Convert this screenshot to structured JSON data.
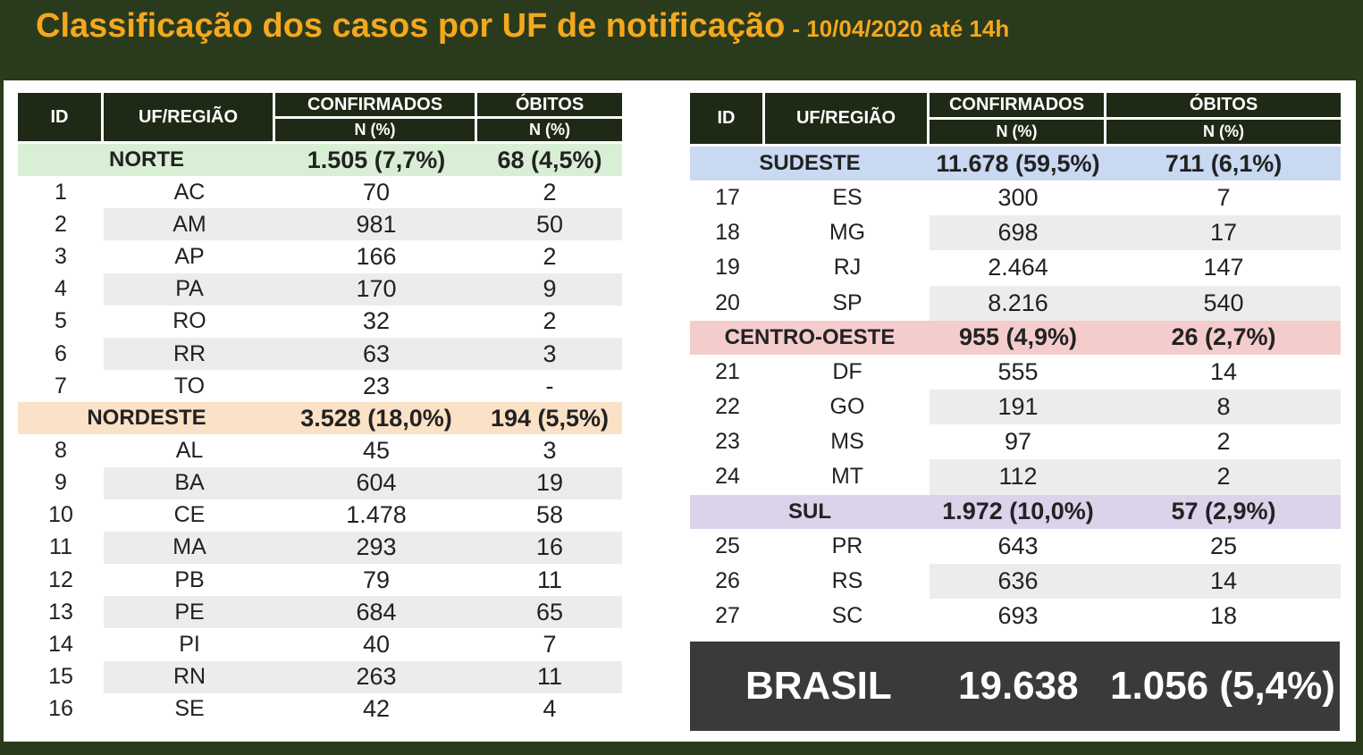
{
  "title": "Classificação dos casos por UF de notificação",
  "subtitle": "- 10/04/2020 até 14h",
  "headers": {
    "id": "ID",
    "uf": "UF/REGIÃO",
    "confirmados": "CONFIRMADOS",
    "obitos": "ÓBITOS",
    "n_pct": "N (%)"
  },
  "colors": {
    "norte": "#d9efd5",
    "nordeste": "#fbe1c5",
    "sudeste": "#c9d9f2",
    "centro_oeste": "#f4cccc",
    "sul": "#dcd2ea",
    "header_bg": "#1f2a16",
    "title": "#f4a81d"
  },
  "left_groups": [
    {
      "region": "NORTE",
      "confirmados": "1.505 (7,7%)",
      "obitos": "68 (4,5%)",
      "color": "#d9efd5",
      "rows": [
        {
          "id": "1",
          "uf": "AC",
          "confirmados": "70",
          "obitos": "2"
        },
        {
          "id": "2",
          "uf": "AM",
          "confirmados": "981",
          "obitos": "50"
        },
        {
          "id": "3",
          "uf": "AP",
          "confirmados": "166",
          "obitos": "2"
        },
        {
          "id": "4",
          "uf": "PA",
          "confirmados": "170",
          "obitos": "9"
        },
        {
          "id": "5",
          "uf": "RO",
          "confirmados": "32",
          "obitos": "2"
        },
        {
          "id": "6",
          "uf": "RR",
          "confirmados": "63",
          "obitos": "3"
        },
        {
          "id": "7",
          "uf": "TO",
          "confirmados": "23",
          "obitos": "-"
        }
      ]
    },
    {
      "region": "NORDESTE",
      "confirmados": "3.528 (18,0%)",
      "obitos": "194 (5,5%)",
      "color": "#fbe1c5",
      "rows": [
        {
          "id": "8",
          "uf": "AL",
          "confirmados": "45",
          "obitos": "3"
        },
        {
          "id": "9",
          "uf": "BA",
          "confirmados": "604",
          "obitos": "19"
        },
        {
          "id": "10",
          "uf": "CE",
          "confirmados": "1.478",
          "obitos": "58"
        },
        {
          "id": "11",
          "uf": "MA",
          "confirmados": "293",
          "obitos": "16"
        },
        {
          "id": "12",
          "uf": "PB",
          "confirmados": "79",
          "obitos": "11"
        },
        {
          "id": "13",
          "uf": "PE",
          "confirmados": "684",
          "obitos": "65"
        },
        {
          "id": "14",
          "uf": "PI",
          "confirmados": "40",
          "obitos": "7"
        },
        {
          "id": "15",
          "uf": "RN",
          "confirmados": "263",
          "obitos": "11"
        },
        {
          "id": "16",
          "uf": "SE",
          "confirmados": "42",
          "obitos": "4"
        }
      ]
    }
  ],
  "right_groups": [
    {
      "region": "SUDESTE",
      "confirmados": "11.678 (59,5%)",
      "obitos": "711 (6,1%)",
      "color": "#c9d9f2",
      "rows": [
        {
          "id": "17",
          "uf": "ES",
          "confirmados": "300",
          "obitos": "7"
        },
        {
          "id": "18",
          "uf": "MG",
          "confirmados": "698",
          "obitos": "17"
        },
        {
          "id": "19",
          "uf": "RJ",
          "confirmados": "2.464",
          "obitos": "147"
        },
        {
          "id": "20",
          "uf": "SP",
          "confirmados": "8.216",
          "obitos": "540"
        }
      ]
    },
    {
      "region": "CENTRO-OESTE",
      "confirmados": "955 (4,9%)",
      "obitos": "26 (2,7%)",
      "color": "#f4cccc",
      "rows": [
        {
          "id": "21",
          "uf": "DF",
          "confirmados": "555",
          "obitos": "14"
        },
        {
          "id": "22",
          "uf": "GO",
          "confirmados": "191",
          "obitos": "8"
        },
        {
          "id": "23",
          "uf": "MS",
          "confirmados": "97",
          "obitos": "2"
        },
        {
          "id": "24",
          "uf": "MT",
          "confirmados": "112",
          "obitos": "2"
        }
      ]
    },
    {
      "region": "SUL",
      "confirmados": "1.972 (10,0%)",
      "obitos": "57 (2,9%)",
      "color": "#dcd2ea",
      "rows": [
        {
          "id": "25",
          "uf": "PR",
          "confirmados": "643",
          "obitos": "25"
        },
        {
          "id": "26",
          "uf": "RS",
          "confirmados": "636",
          "obitos": "14"
        },
        {
          "id": "27",
          "uf": "SC",
          "confirmados": "693",
          "obitos": "18"
        }
      ]
    }
  ],
  "brasil": {
    "label": "BRASIL",
    "confirmados": "19.638",
    "obitos": "1.056 (5,4%)"
  }
}
